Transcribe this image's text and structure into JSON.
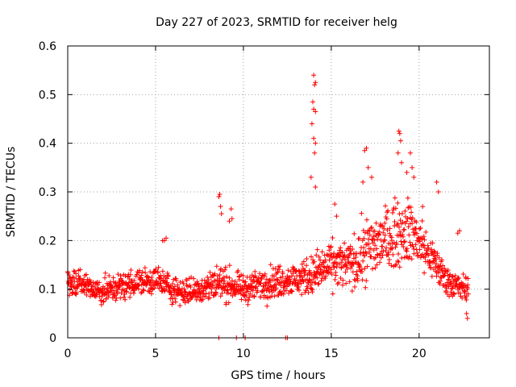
{
  "chart_data": {
    "type": "scatter",
    "title": "Day 227 of 2023, SRMTID for receiver helg",
    "xlabel": "GPS time / hours",
    "ylabel": "SRMTID / TECUs",
    "xlim": [
      0,
      24
    ],
    "ylim": [
      0,
      0.6
    ],
    "x_ticks": [
      0,
      5,
      10,
      15,
      20
    ],
    "x_tick_labels": [
      "0",
      "5",
      "10",
      "15",
      "20"
    ],
    "y_ticks": [
      0,
      0.1,
      0.2,
      0.3,
      0.4,
      0.5,
      0.6
    ],
    "y_tick_labels": [
      "0",
      "0.1",
      "0.2",
      "0.3",
      "0.4",
      "0.5",
      "0.6"
    ],
    "grid": true,
    "marker": "plus",
    "series_color": "#ff0000",
    "series": [
      {
        "name": "SRMTID",
        "profile_hours": [
          0.0,
          0.5,
          1.0,
          1.5,
          2.0,
          2.5,
          3.0,
          3.5,
          4.0,
          4.5,
          5.0,
          5.5,
          6.0,
          6.5,
          7.0,
          7.5,
          8.0,
          8.5,
          9.0,
          9.5,
          10.0,
          10.5,
          11.0,
          11.5,
          12.0,
          12.5,
          13.0,
          13.5,
          14.0,
          14.5,
          15.0,
          15.5,
          16.0,
          16.5,
          17.0,
          17.5,
          18.0,
          18.5,
          19.0,
          19.5,
          20.0,
          20.5,
          21.0,
          21.5,
          22.0,
          22.5,
          22.8
        ],
        "profile_median": [
          0.115,
          0.11,
          0.11,
          0.1,
          0.095,
          0.1,
          0.105,
          0.11,
          0.115,
          0.115,
          0.12,
          0.11,
          0.1,
          0.095,
          0.095,
          0.1,
          0.105,
          0.115,
          0.11,
          0.105,
          0.1,
          0.105,
          0.11,
          0.115,
          0.115,
          0.12,
          0.12,
          0.125,
          0.13,
          0.14,
          0.15,
          0.15,
          0.15,
          0.16,
          0.18,
          0.19,
          0.2,
          0.21,
          0.22,
          0.22,
          0.2,
          0.17,
          0.15,
          0.12,
          0.11,
          0.1,
          0.1
        ],
        "profile_spread": [
          0.03,
          0.03,
          0.03,
          0.03,
          0.03,
          0.03,
          0.03,
          0.03,
          0.03,
          0.03,
          0.03,
          0.03,
          0.03,
          0.03,
          0.03,
          0.03,
          0.035,
          0.04,
          0.035,
          0.03,
          0.03,
          0.03,
          0.035,
          0.035,
          0.035,
          0.035,
          0.035,
          0.04,
          0.045,
          0.05,
          0.05,
          0.05,
          0.05,
          0.06,
          0.07,
          0.07,
          0.07,
          0.07,
          0.07,
          0.07,
          0.06,
          0.05,
          0.04,
          0.035,
          0.03,
          0.03,
          0.03
        ],
        "highlight_points": [
          [
            5.4,
            0.2
          ],
          [
            5.5,
            0.2
          ],
          [
            5.6,
            0.205
          ],
          [
            8.6,
            0.29
          ],
          [
            8.65,
            0.295
          ],
          [
            8.7,
            0.27
          ],
          [
            8.75,
            0.255
          ],
          [
            9.2,
            0.24
          ],
          [
            9.3,
            0.265
          ],
          [
            9.35,
            0.245
          ],
          [
            14.0,
            0.54
          ],
          [
            14.05,
            0.52
          ],
          [
            14.1,
            0.525
          ],
          [
            13.95,
            0.485
          ],
          [
            14.0,
            0.47
          ],
          [
            14.1,
            0.465
          ],
          [
            13.9,
            0.44
          ],
          [
            14.0,
            0.41
          ],
          [
            14.05,
            0.38
          ],
          [
            14.1,
            0.4
          ],
          [
            13.85,
            0.33
          ],
          [
            14.1,
            0.31
          ],
          [
            15.2,
            0.275
          ],
          [
            15.3,
            0.25
          ],
          [
            16.9,
            0.385
          ],
          [
            17.0,
            0.39
          ],
          [
            17.1,
            0.35
          ],
          [
            17.3,
            0.33
          ],
          [
            16.8,
            0.32
          ],
          [
            18.85,
            0.425
          ],
          [
            18.9,
            0.42
          ],
          [
            18.95,
            0.405
          ],
          [
            18.8,
            0.38
          ],
          [
            19.0,
            0.36
          ],
          [
            19.5,
            0.38
          ],
          [
            19.3,
            0.34
          ],
          [
            19.6,
            0.35
          ],
          [
            19.7,
            0.33
          ],
          [
            20.2,
            0.27
          ],
          [
            21.0,
            0.32
          ],
          [
            21.1,
            0.3
          ],
          [
            22.2,
            0.215
          ],
          [
            22.3,
            0.22
          ],
          [
            22.7,
            0.05
          ],
          [
            22.75,
            0.04
          ]
        ],
        "zero_points": [
          8.6,
          9.6,
          10.1,
          12.4,
          12.5
        ]
      }
    ]
  }
}
